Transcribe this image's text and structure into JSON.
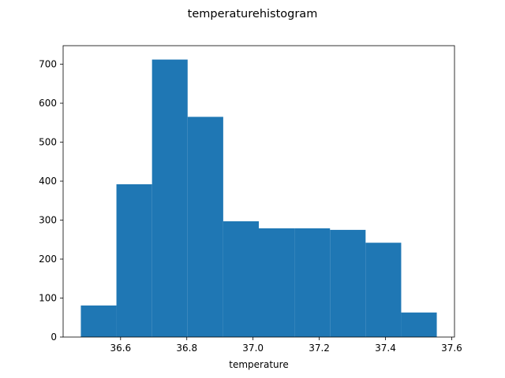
{
  "chart_data": {
    "type": "bar",
    "title": "temperaturehistogram",
    "xlabel": "temperature",
    "ylabel": "",
    "bin_edges": [
      36.48,
      36.5875,
      36.695,
      36.8025,
      36.91,
      37.0175,
      37.125,
      37.2325,
      37.34,
      37.4475,
      37.555
    ],
    "values": [
      81,
      392,
      712,
      565,
      297,
      279,
      279,
      275,
      242,
      63
    ],
    "xlim": [
      36.4265,
      37.6085
    ],
    "ylim": [
      0,
      747.6
    ],
    "xticks": [
      36.6,
      36.8,
      37.0,
      37.2,
      37.4,
      37.6
    ],
    "xtick_labels": [
      "36.6",
      "36.8",
      "37.0",
      "37.2",
      "37.4",
      "37.6"
    ],
    "yticks": [
      0,
      100,
      200,
      300,
      400,
      500,
      600,
      700
    ],
    "ytick_labels": [
      "0",
      "100",
      "200",
      "300",
      "400",
      "500",
      "600",
      "700"
    ],
    "bar_color": "#1f77b4",
    "grid": false,
    "legend": "none"
  }
}
